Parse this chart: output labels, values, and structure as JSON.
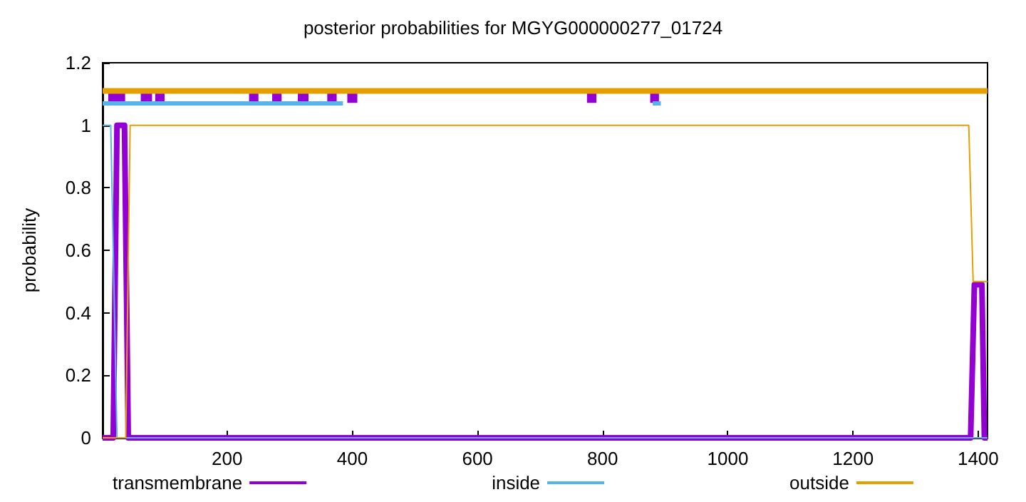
{
  "chart_data": {
    "type": "line",
    "title": "posterior probabilities for MGYG000000277_01724",
    "ylabel": "probability",
    "xlim": [
      1,
      1415
    ],
    "xticks": [
      200,
      400,
      600,
      800,
      1000,
      1200,
      1400
    ],
    "ylim": [
      0,
      1.2
    ],
    "yticks": [
      0,
      0.2,
      0.4,
      0.6,
      0.8,
      1,
      1.2
    ],
    "grid": false,
    "legend": "bottom",
    "marker": "none",
    "line_style": "solid",
    "series": [
      {
        "name": "transmembrane",
        "color": "#9400d3",
        "x": [
          1,
          18,
          24,
          36,
          42,
          1388,
          1394,
          1406,
          1410,
          1415
        ],
        "values": [
          0,
          0,
          1,
          1,
          0,
          0,
          0.49,
          0.49,
          0,
          0
        ]
      },
      {
        "name": "inside",
        "color": "#56b4e9",
        "x": [
          1,
          14,
          24,
          1415
        ],
        "values": [
          1,
          1,
          0,
          0
        ]
      },
      {
        "name": "outside",
        "color": "#e69f00",
        "x": [
          1,
          38,
          45,
          1385,
          1392,
          1415
        ],
        "values": [
          0,
          0,
          1,
          1,
          0.5,
          0.5
        ]
      },
      {
        "color": "#9400d3",
        "x": [
          10,
          37,
          null,
          62,
          80,
          null,
          85,
          100,
          null,
          235,
          250,
          null,
          272,
          287,
          null,
          313,
          330,
          null,
          360,
          375,
          null,
          392,
          408,
          null,
          775,
          790,
          null,
          876,
          890
        ],
        "values": [
          1.09,
          1.09,
          null,
          1.09,
          1.09,
          null,
          1.09,
          1.09,
          null,
          1.09,
          1.09,
          null,
          1.09,
          1.09,
          null,
          1.09,
          1.09,
          null,
          1.09,
          1.09,
          null,
          1.09,
          1.09,
          null,
          1.09,
          1.09,
          null,
          1.09,
          1.09
        ]
      },
      {
        "color": "#56b4e9",
        "x": [
          1,
          385,
          null,
          880,
          893
        ],
        "values": [
          1.07,
          1.07,
          null,
          1.07,
          1.07
        ]
      },
      {
        "color": "#e69f00",
        "x": [
          1,
          1415
        ],
        "values": [
          1.11,
          1.11
        ]
      }
    ]
  }
}
